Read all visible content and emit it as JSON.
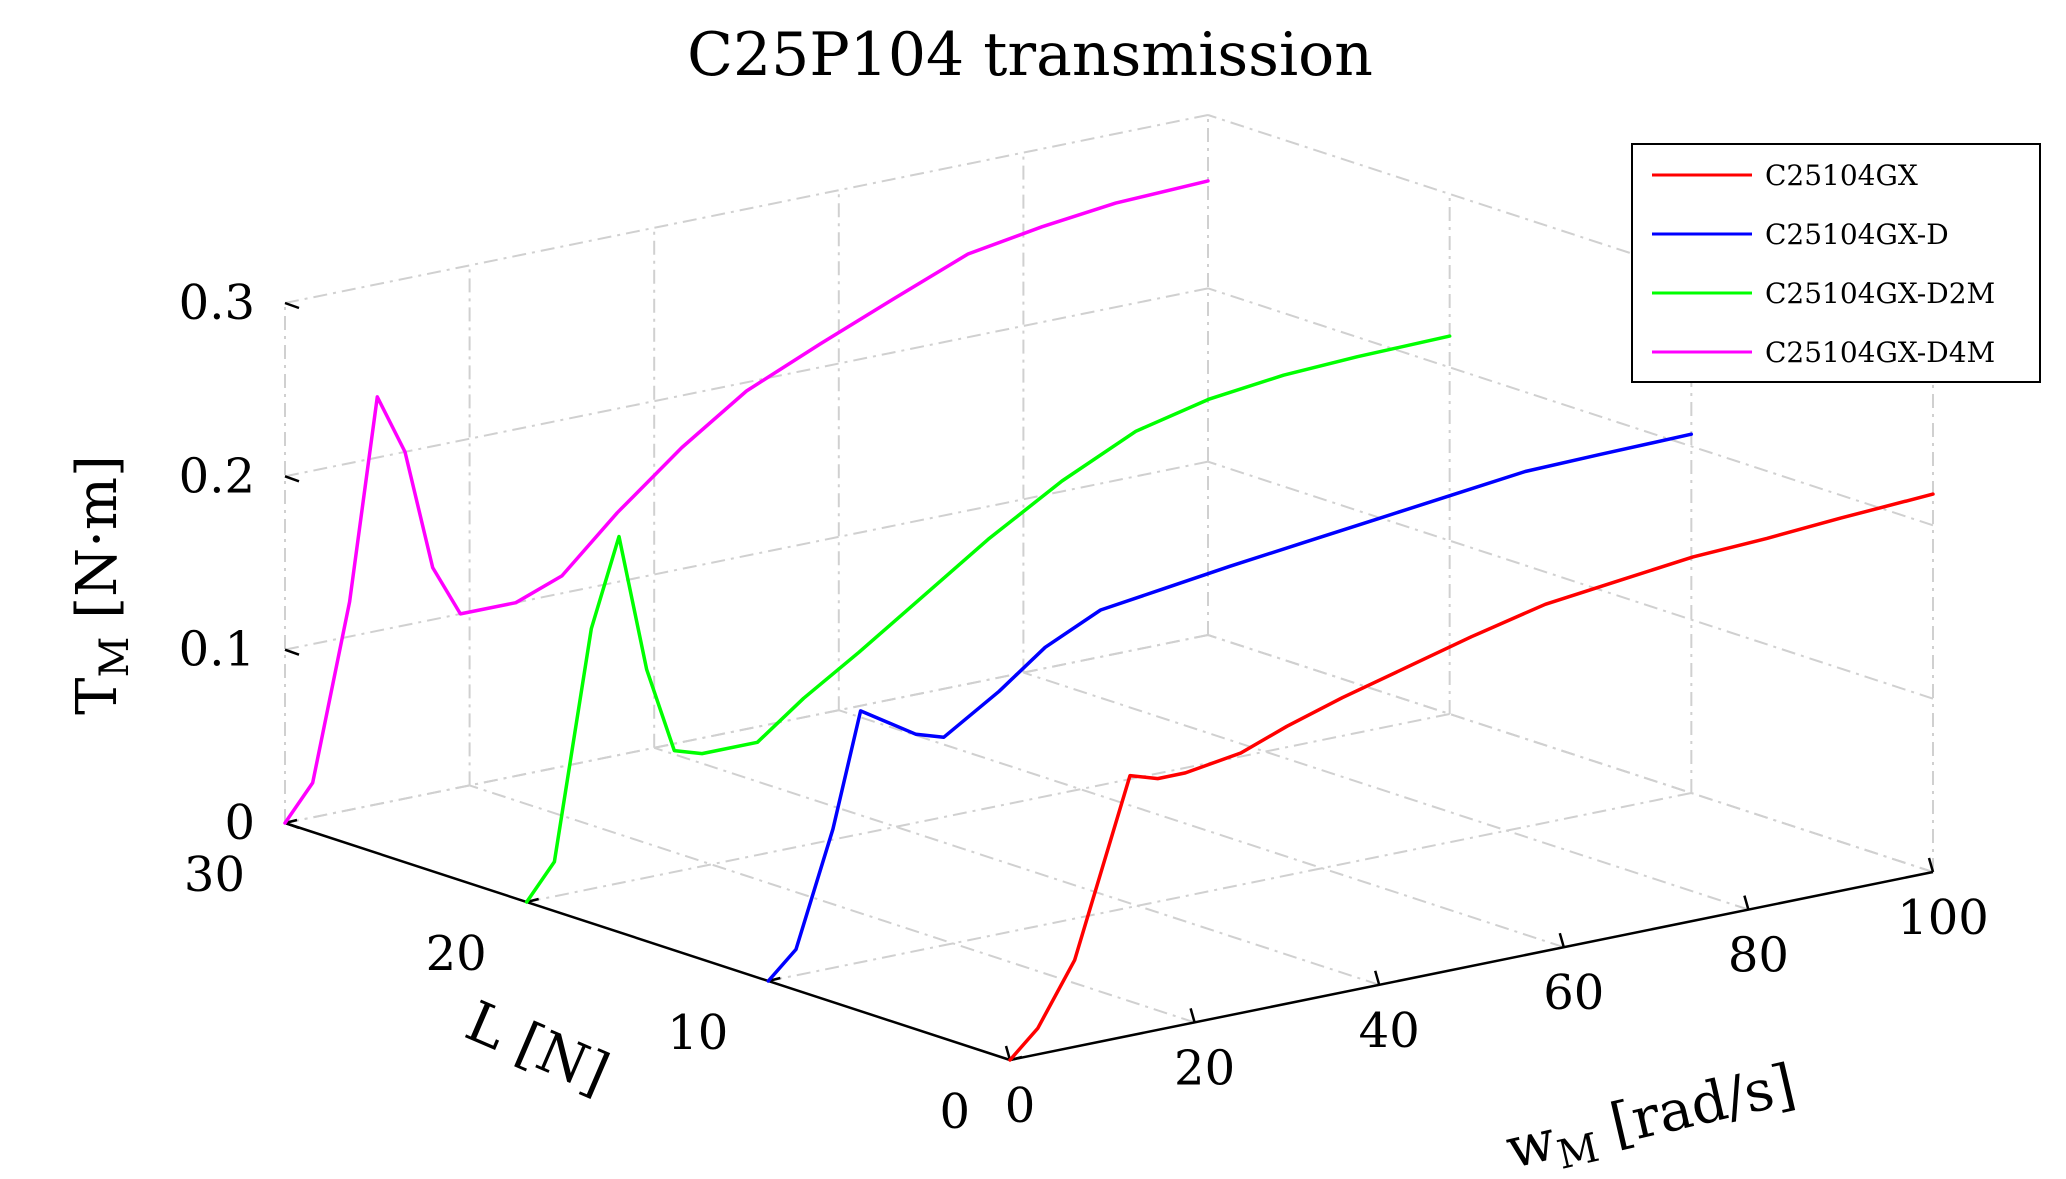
{
  "chart_data": {
    "type": "line",
    "title": "C25P104 transmission",
    "xlabel": "w_M [rad/s]",
    "xlabel_main": "w",
    "xlabel_sub": "M",
    "xlabel_unit": "[rad/s]",
    "ylabel": "L [N]",
    "zlabel": "T_M [N·m]",
    "zlabel_main": "T",
    "zlabel_sub": "M",
    "zlabel_unit": "[N·m]",
    "xlim": [
      0,
      100
    ],
    "ylim": [
      0,
      30
    ],
    "zlim": [
      0,
      0.3
    ],
    "x_ticks": [
      "0",
      "20",
      "40",
      "60",
      "80",
      "100"
    ],
    "x_tick_values": [
      0,
      20,
      40,
      60,
      80,
      100
    ],
    "y_ticks": [
      "0",
      "10",
      "20",
      "30"
    ],
    "y_tick_values": [
      0,
      10,
      20,
      30
    ],
    "z_ticks": [
      "0",
      "0.1",
      "0.2",
      "0.3"
    ],
    "z_tick_values": [
      0,
      0.1,
      0.2,
      0.3
    ],
    "grid": true,
    "legend_position": "top-right",
    "series": [
      {
        "name": "C25104GX",
        "color": "#ff0000",
        "load": 0,
        "x": [
          0,
          3,
          7,
          10,
          13,
          16,
          19,
          25,
          30,
          36,
          43,
          50,
          58,
          66,
          74,
          82,
          90,
          100
        ],
        "z": [
          0.0,
          0.015,
          0.05,
          0.1,
          0.15,
          0.145,
          0.145,
          0.15,
          0.16,
          0.17,
          0.18,
          0.19,
          0.2,
          0.205,
          0.21,
          0.212,
          0.215,
          0.218
        ]
      },
      {
        "name": "C25104GX-D",
        "color": "#0000ff",
        "load": 10,
        "x": [
          0,
          3,
          7,
          10,
          13,
          16,
          19,
          25,
          30,
          36,
          43,
          50,
          58,
          66,
          74,
          82,
          90,
          100
        ],
        "z": [
          0.0,
          0.015,
          0.08,
          0.145,
          0.135,
          0.125,
          0.12,
          0.14,
          0.16,
          0.175,
          0.18,
          0.185,
          0.19,
          0.195,
          0.2,
          0.205,
          0.206,
          0.207
        ]
      },
      {
        "name": "C25104GX-D2M",
        "color": "#00ff00",
        "load": 20,
        "x": [
          0,
          3,
          7,
          10,
          13,
          16,
          19,
          25,
          30,
          36,
          43,
          50,
          58,
          66,
          74,
          82,
          90,
          100
        ],
        "z": [
          0.0,
          0.02,
          0.15,
          0.2,
          0.12,
          0.07,
          0.065,
          0.065,
          0.085,
          0.105,
          0.13,
          0.155,
          0.18,
          0.2,
          0.21,
          0.215,
          0.217,
          0.218
        ]
      },
      {
        "name": "C25104GX-D4M",
        "color": "#ff00ff",
        "load": 30,
        "x": [
          0,
          3,
          7,
          10,
          13,
          16,
          19,
          25,
          30,
          36,
          43,
          50,
          58,
          66,
          74,
          82,
          90,
          100
        ],
        "z": [
          0.0,
          0.02,
          0.12,
          0.235,
          0.2,
          0.13,
          0.1,
          0.1,
          0.11,
          0.14,
          0.17,
          0.195,
          0.2135,
          0.231,
          0.248,
          0.255,
          0.26,
          0.262
        ]
      }
    ]
  }
}
